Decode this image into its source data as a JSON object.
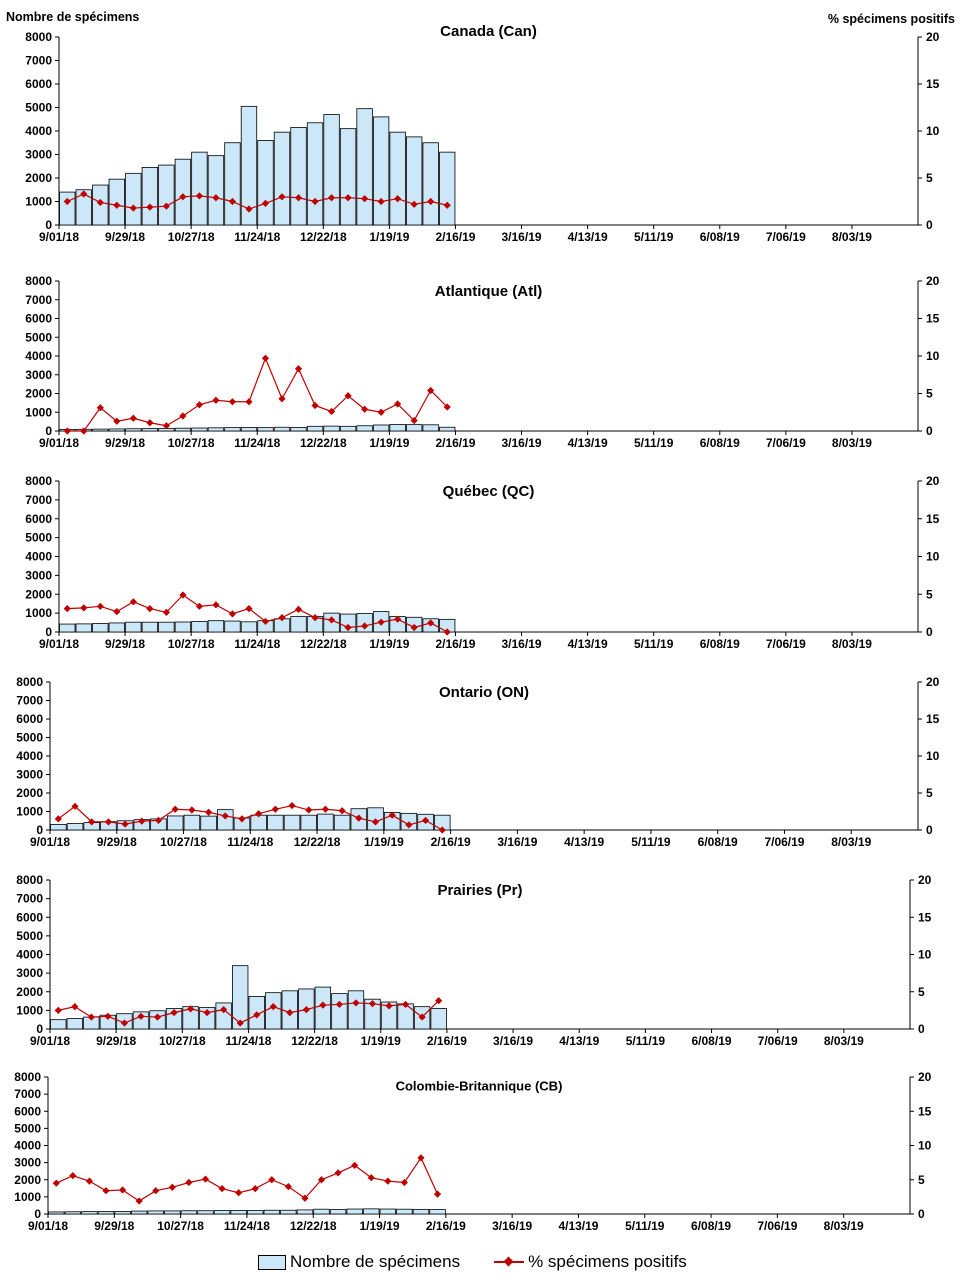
{
  "page": {
    "left_axis_title": "Nombre de spécimens",
    "right_axis_title": "% spécimens positifs",
    "legend": {
      "bars": "Nombre de spécimens",
      "line": "% spécimens positifs"
    },
    "colors": {
      "bar_fill": "#cce8f8",
      "bar_stroke": "#000000",
      "line": "#c00000"
    }
  },
  "chart_data": [
    {
      "type": "bar",
      "title": "Canada (Can)",
      "x_tick_labels": [
        "9/01/18",
        "9/29/18",
        "10/27/18",
        "11/24/18",
        "12/22/18",
        "1/19/19",
        "2/16/19",
        "3/16/19",
        "4/13/19",
        "5/11/19",
        "6/08/19",
        "7/06/19",
        "8/03/19"
      ],
      "weeks_total": 52,
      "ylim_left": [
        0,
        8000
      ],
      "yticks_left": [
        0,
        1000,
        2000,
        3000,
        4000,
        5000,
        6000,
        7000,
        8000
      ],
      "ylim_right": [
        0,
        20
      ],
      "yticks_right": [
        0,
        5,
        10,
        15,
        20
      ],
      "series": [
        {
          "name": "Nombre de spécimens",
          "type": "bar",
          "values": [
            1400,
            1500,
            1700,
            1950,
            2200,
            2450,
            2550,
            2800,
            3100,
            2950,
            3500,
            5050,
            3600,
            3950,
            4150,
            4350,
            4700,
            4100,
            4950,
            4600,
            3950,
            3750,
            3500,
            3100
          ]
        },
        {
          "name": "% spécimens positifs",
          "type": "line",
          "values": [
            2.5,
            3.3,
            2.4,
            2.1,
            1.8,
            1.9,
            2.0,
            3.0,
            3.1,
            2.9,
            2.5,
            1.7,
            2.3,
            3.0,
            2.9,
            2.5,
            2.9,
            2.9,
            2.8,
            2.5,
            2.8,
            2.2,
            2.5,
            2.1
          ]
        }
      ]
    },
    {
      "type": "bar",
      "title": "Atlantique (Atl)",
      "x_tick_labels": [
        "9/01/18",
        "9/29/18",
        "10/27/18",
        "11/24/18",
        "12/22/18",
        "1/19/19",
        "2/16/19",
        "3/16/19",
        "4/13/19",
        "5/11/19",
        "6/08/19",
        "7/06/19",
        "8/03/19"
      ],
      "weeks_total": 52,
      "ylim_left": [
        0,
        8000
      ],
      "yticks_left": [
        0,
        1000,
        2000,
        3000,
        4000,
        5000,
        6000,
        7000,
        8000
      ],
      "ylim_right": [
        0,
        20
      ],
      "yticks_right": [
        0,
        5,
        10,
        15,
        20
      ],
      "series": [
        {
          "name": "Nombre de spécimens",
          "type": "bar",
          "values": [
            80,
            90,
            100,
            110,
            120,
            130,
            140,
            150,
            160,
            170,
            180,
            190,
            180,
            200,
            190,
            250,
            260,
            250,
            280,
            320,
            350,
            340,
            330,
            200
          ]
        },
        {
          "name": "% spécimens positifs",
          "type": "line",
          "values": [
            0.0,
            0.0,
            3.1,
            1.3,
            1.7,
            1.1,
            0.7,
            2.0,
            3.5,
            4.1,
            3.9,
            3.9,
            9.7,
            4.3,
            8.3,
            3.4,
            2.6,
            4.7,
            2.9,
            2.5,
            3.6,
            1.4,
            5.4,
            3.2
          ]
        }
      ]
    },
    {
      "type": "bar",
      "title": "Québec (QC)",
      "x_tick_labels": [
        "9/01/18",
        "9/29/18",
        "10/27/18",
        "11/24/18",
        "12/22/18",
        "1/19/19",
        "2/16/19",
        "3/16/19",
        "4/13/19",
        "5/11/19",
        "6/08/19",
        "7/06/19",
        "8/03/19"
      ],
      "weeks_total": 52,
      "ylim_left": [
        0,
        8000
      ],
      "yticks_left": [
        0,
        1000,
        2000,
        3000,
        4000,
        5000,
        6000,
        7000,
        8000
      ],
      "ylim_right": [
        0,
        20
      ],
      "yticks_right": [
        0,
        5,
        10,
        15,
        20
      ],
      "series": [
        {
          "name": "Nombre de spécimens",
          "type": "bar",
          "values": [
            420,
            430,
            450,
            480,
            520,
            520,
            520,
            530,
            560,
            600,
            580,
            540,
            600,
            700,
            820,
            820,
            1000,
            950,
            980,
            1080,
            820,
            780,
            700,
            670
          ]
        },
        {
          "name": "% spécimens positifs",
          "type": "line",
          "values": [
            3.1,
            3.2,
            3.4,
            2.7,
            4.0,
            3.1,
            2.6,
            4.9,
            3.4,
            3.6,
            2.4,
            3.1,
            1.4,
            1.9,
            3.0,
            1.9,
            1.6,
            0.6,
            0.8,
            1.3,
            1.7,
            0.6,
            1.2,
            0.0
          ]
        }
      ]
    },
    {
      "type": "bar",
      "title": "Ontario (ON)",
      "x_tick_labels": [
        "9/01/18",
        "9/29/18",
        "10/27/18",
        "11/24/18",
        "12/22/18",
        "1/19/19",
        "2/16/19",
        "3/16/19",
        "4/13/19",
        "5/11/19",
        "6/08/19",
        "7/06/19",
        "8/03/19"
      ],
      "weeks_total": 52,
      "ylim_left": [
        0,
        8000
      ],
      "yticks_left": [
        0,
        1000,
        2000,
        3000,
        4000,
        5000,
        6000,
        7000,
        8000
      ],
      "ylim_right": [
        0,
        20
      ],
      "yticks_right": [
        0,
        5,
        10,
        15,
        20
      ],
      "series": [
        {
          "name": "Nombre de spécimens",
          "type": "bar",
          "values": [
            300,
            350,
            400,
            450,
            500,
            560,
            600,
            760,
            800,
            750,
            1100,
            650,
            800,
            800,
            800,
            800,
            860,
            800,
            1150,
            1200,
            950,
            900,
            850,
            800
          ]
        },
        {
          "name": "% spécimens positifs",
          "type": "line",
          "values": [
            1.5,
            3.2,
            1.1,
            1.1,
            0.8,
            1.2,
            1.3,
            2.8,
            2.7,
            2.4,
            1.9,
            1.5,
            2.2,
            2.8,
            3.3,
            2.7,
            2.8,
            2.6,
            1.6,
            1.1,
            2.0,
            0.7,
            1.3,
            0.0
          ]
        }
      ]
    },
    {
      "type": "bar",
      "title": "Prairies (Pr)",
      "x_tick_labels": [
        "9/01/18",
        "9/29/18",
        "10/27/18",
        "11/24/18",
        "12/22/18",
        "1/19/19",
        "2/16/19",
        "3/16/19",
        "4/13/19",
        "5/11/19",
        "6/08/19",
        "7/06/19",
        "8/03/19"
      ],
      "weeks_total": 52,
      "ylim_left": [
        0,
        8000
      ],
      "yticks_left": [
        0,
        1000,
        2000,
        3000,
        4000,
        5000,
        6000,
        7000,
        8000
      ],
      "ylim_right": [
        0,
        20
      ],
      "yticks_right": [
        0,
        5,
        10,
        15,
        20
      ],
      "series": [
        {
          "name": "Nombre de spécimens",
          "type": "bar",
          "values": [
            500,
            560,
            640,
            740,
            820,
            920,
            980,
            1100,
            1200,
            1150,
            1400,
            3400,
            1750,
            1950,
            2050,
            2150,
            2250,
            1900,
            2050,
            1600,
            1450,
            1350,
            1200,
            1100
          ]
        },
        {
          "name": "% spécimens positifs",
          "type": "line",
          "values": [
            2.5,
            3.0,
            1.6,
            1.7,
            0.8,
            1.7,
            1.6,
            2.2,
            2.7,
            2.2,
            2.6,
            0.8,
            1.9,
            3.0,
            2.2,
            2.6,
            3.2,
            3.3,
            3.5,
            3.4,
            3.1,
            3.3,
            1.6,
            3.8
          ]
        }
      ]
    },
    {
      "type": "bar",
      "title": "Colombie-Britannique (CB)",
      "x_tick_labels": [
        "9/01/18",
        "9/29/18",
        "10/27/18",
        "11/24/18",
        "12/22/18",
        "1/19/19",
        "2/16/19",
        "3/16/19",
        "4/13/19",
        "5/11/19",
        "6/08/19",
        "7/06/19",
        "8/03/19"
      ],
      "weeks_total": 52,
      "ylim_left": [
        0,
        8000
      ],
      "yticks_left": [
        0,
        1000,
        2000,
        3000,
        4000,
        5000,
        6000,
        7000,
        8000
      ],
      "ylim_right": [
        0,
        20
      ],
      "yticks_right": [
        0,
        5,
        10,
        15,
        20
      ],
      "series": [
        {
          "name": "Nombre de spécimens",
          "type": "bar",
          "values": [
            120,
            130,
            140,
            150,
            150,
            170,
            180,
            180,
            190,
            190,
            200,
            210,
            200,
            220,
            220,
            240,
            280,
            260,
            290,
            300,
            290,
            280,
            270,
            260
          ]
        },
        {
          "name": "% spécimens positifs",
          "type": "line",
          "values": [
            4.5,
            5.6,
            4.8,
            3.4,
            3.5,
            1.9,
            3.4,
            3.9,
            4.6,
            5.1,
            3.7,
            3.1,
            3.7,
            5.0,
            4.0,
            2.3,
            5.0,
            6.0,
            7.1,
            5.3,
            4.8,
            4.6,
            8.2,
            2.9
          ]
        }
      ]
    }
  ]
}
